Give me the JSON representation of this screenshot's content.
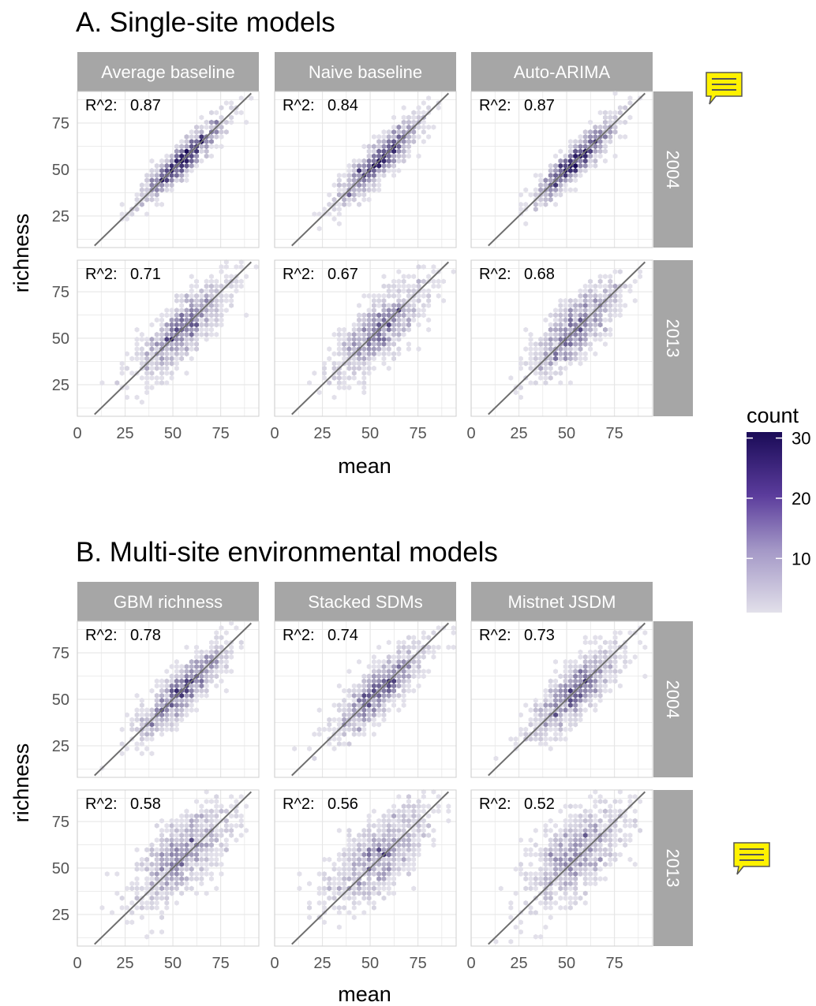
{
  "colors": {
    "strip": "#a6a6a6",
    "strip_text": "#ffffff",
    "grid": "#e6e6e6",
    "panel_border": "#cfcfcf",
    "one_to_one_line": "#6e6e6e",
    "count_low": "#e2e0ea",
    "count_high": "#1a0b57",
    "comment_icon": "#fff200"
  },
  "icons": {
    "comment": "comment-note-icon"
  },
  "chart_data": [
    {
      "type": "heatmap",
      "title": "A. Single-site models",
      "xlabel": "mean",
      "ylabel": "richness",
      "xlim": [
        0,
        95
      ],
      "ylim": [
        8,
        92
      ],
      "x_ticks": [
        "0",
        "25",
        "50",
        "75"
      ],
      "y_ticks": [
        "25",
        "50",
        "75"
      ],
      "grid": true,
      "columns": [
        "Average baseline",
        "Naive baseline",
        "Auto-ARIMA"
      ],
      "rows": [
        "2004",
        "2013"
      ],
      "r2_label": "R^2:",
      "r2": [
        [
          "0.87",
          "0.84",
          "0.87"
        ],
        [
          "0.71",
          "0.67",
          "0.68"
        ]
      ],
      "reference_line": "y = x"
    },
    {
      "type": "heatmap",
      "title": "B. Multi-site environmental models",
      "xlabel": "mean",
      "ylabel": "richness",
      "xlim": [
        0,
        95
      ],
      "ylim": [
        8,
        92
      ],
      "x_ticks": [
        "0",
        "25",
        "50",
        "75"
      ],
      "y_ticks": [
        "25",
        "50",
        "75"
      ],
      "grid": true,
      "columns": [
        "GBM richness",
        "Stacked SDMs",
        "Mistnet JSDM"
      ],
      "rows": [
        "2004",
        "2013"
      ],
      "r2_label": "R^2:",
      "r2": [
        [
          "0.78",
          "0.74",
          "0.73"
        ],
        [
          "0.58",
          "0.56",
          "0.52"
        ]
      ],
      "reference_line": "y = x"
    }
  ],
  "legend": {
    "title": "count",
    "ticks": [
      "30",
      "20",
      "10"
    ],
    "tick_values": [
      30,
      20,
      10
    ],
    "range": [
      1,
      31
    ]
  }
}
